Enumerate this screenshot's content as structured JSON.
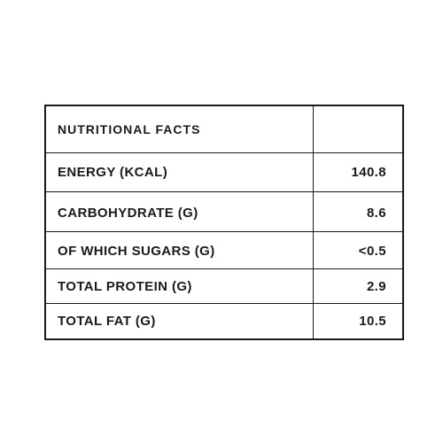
{
  "table": {
    "header": [
      "NUTRITIONAL FACTS",
      null
    ],
    "rows": [
      [
        "ENERGY (KCAL)",
        "140.8"
      ],
      [
        "CARBOHYDRATE (G)",
        "8.6"
      ],
      [
        "OF WHICH SUGARS (G)",
        "<0.5"
      ],
      [
        "TOTAL PROTEIN (G)",
        "2.9"
      ],
      [
        "TOTAL FAT (G)",
        "10.5"
      ]
    ]
  }
}
